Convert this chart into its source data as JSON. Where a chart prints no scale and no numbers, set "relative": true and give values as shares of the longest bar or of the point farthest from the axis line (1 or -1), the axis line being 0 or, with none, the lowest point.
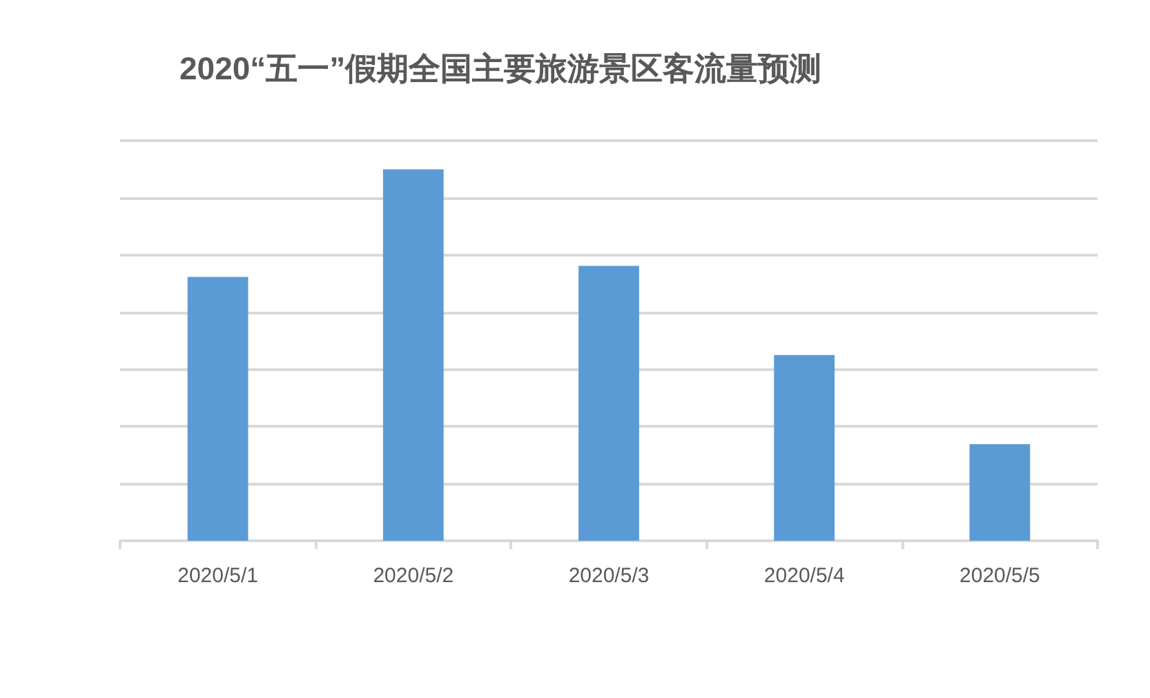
{
  "chart_data": {
    "type": "bar",
    "title": "2020“五一”假期全国主要旅游景区客流量预测",
    "categories": [
      "2020/5/1",
      "2020/5/2",
      "2020/5/3",
      "2020/5/4",
      "2020/5/5"
    ],
    "values": [
      0.71,
      1,
      0.74,
      0.5,
      0.26
    ],
    "color": "#5b9bd5",
    "relative": true,
    "grid": "y"
  }
}
